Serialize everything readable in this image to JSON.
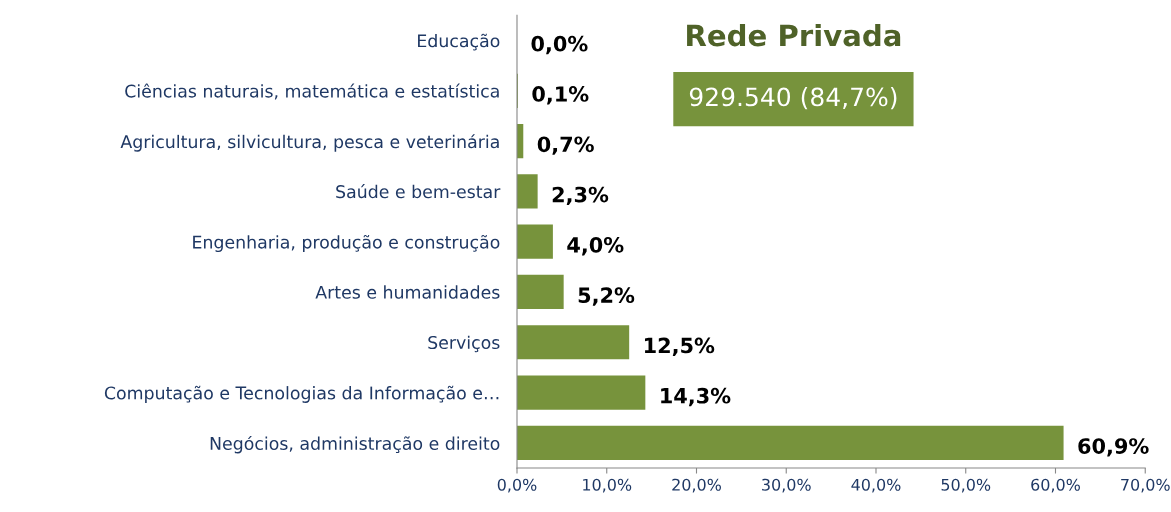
{
  "chart_data": {
    "type": "bar",
    "orientation": "horizontal",
    "categories": [
      "Educação",
      "Ciências naturais, matemática e estatística",
      "Agricultura, silvicultura, pesca e veterinária",
      "Saúde e bem-estar",
      "Engenharia, produção e construção",
      "Artes e humanidades",
      "Serviços",
      "Computação e Tecnologias da Informação e…",
      "Negócios, administração e direito"
    ],
    "values": [
      0.0,
      0.1,
      0.7,
      2.3,
      4.0,
      5.2,
      12.5,
      14.3,
      60.9
    ],
    "value_labels": [
      "0,0%",
      "0,1%",
      "0,7%",
      "2,3%",
      "4,0%",
      "5,2%",
      "12,5%",
      "14,3%",
      "60,9%"
    ],
    "color": "#77933c",
    "xlim": [
      0,
      70
    ],
    "xticks": [
      {
        "value": 0,
        "label": "0,0%"
      },
      {
        "value": 10,
        "label": "10,0%"
      },
      {
        "value": 20,
        "label": "20,0%"
      },
      {
        "value": 30,
        "label": "30,0%"
      },
      {
        "value": 40,
        "label": "40,0%"
      },
      {
        "value": 50,
        "label": "50,0%"
      },
      {
        "value": 60,
        "label": "60,0%"
      },
      {
        "value": 70,
        "label": "70,0%"
      }
    ],
    "annotations": [
      "Rede Privada",
      "929.540 (84,7%)"
    ],
    "grid": false,
    "legend": false
  }
}
